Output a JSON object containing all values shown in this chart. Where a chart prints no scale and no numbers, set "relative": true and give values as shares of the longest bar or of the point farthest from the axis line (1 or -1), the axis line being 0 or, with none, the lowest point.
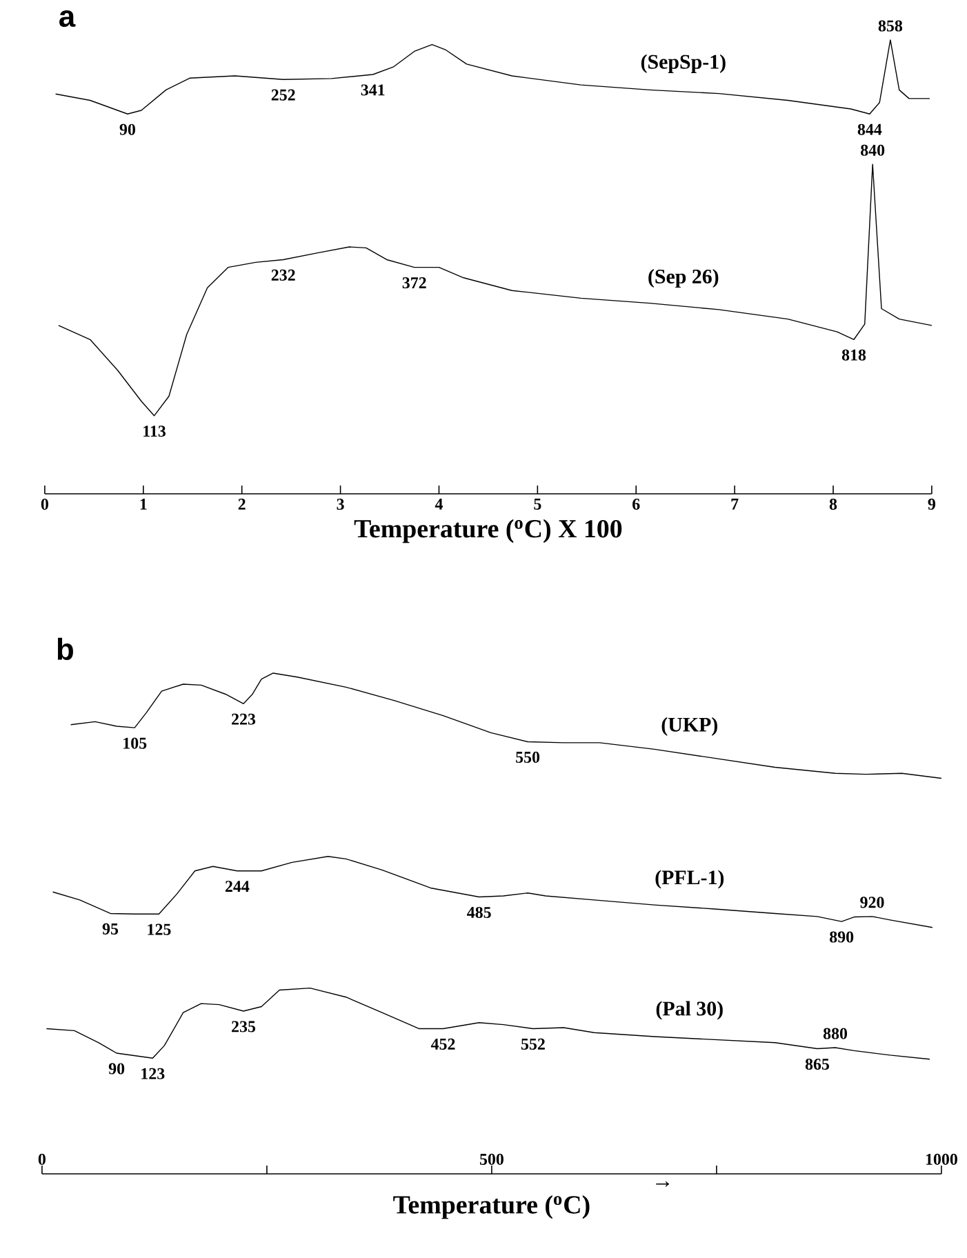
{
  "chart_data": [
    {
      "type": "line",
      "title": "a",
      "xlabel": "Temperature ($^{o}$C) X 100",
      "relative": true,
      "marker": "none",
      "xlim": [
        0,
        9
      ],
      "xticks": [
        0,
        1,
        2,
        3,
        4,
        5,
        6,
        7,
        8,
        9
      ],
      "series": [
        {
          "name": "(SepSp-1)",
          "color": "#000000",
          "x": [
            0.11,
            0.46,
            0.84,
            0.98,
            1.23,
            1.47,
            1.93,
            2.42,
            2.91,
            3.33,
            3.54,
            3.75,
            3.93,
            4.07,
            4.28,
            4.74,
            5.44,
            6.14,
            6.84,
            7.54,
            8.18,
            8.37,
            8.47,
            8.58,
            8.67,
            8.77,
            8.98
          ],
          "values": [
            0.881,
            0.867,
            0.837,
            0.845,
            0.89,
            0.916,
            0.921,
            0.913,
            0.915,
            0.924,
            0.941,
            0.975,
            0.99,
            0.978,
            0.947,
            0.921,
            0.901,
            0.89,
            0.882,
            0.867,
            0.848,
            0.837,
            0.862,
            1.0,
            0.89,
            0.871,
            0.871
          ]
        },
        {
          "name": "(Sep 26)",
          "color": "#000000",
          "x": [
            0.14,
            0.46,
            0.74,
            0.98,
            1.11,
            1.26,
            1.44,
            1.65,
            1.86,
            2.14,
            2.42,
            2.77,
            3.09,
            3.26,
            3.47,
            3.75,
            4.0,
            4.25,
            4.74,
            5.44,
            6.14,
            6.84,
            7.54,
            8.04,
            8.21,
            8.32,
            8.4,
            8.49,
            8.67,
            9.0
          ],
          "values": [
            0.371,
            0.34,
            0.272,
            0.204,
            0.172,
            0.215,
            0.351,
            0.454,
            0.499,
            0.51,
            0.516,
            0.531,
            0.544,
            0.542,
            0.516,
            0.499,
            0.499,
            0.476,
            0.448,
            0.431,
            0.42,
            0.406,
            0.385,
            0.357,
            0.34,
            0.374,
            0.726,
            0.408,
            0.385,
            0.371
          ]
        }
      ],
      "annotations": [
        {
          "text": "90",
          "x": 0.84,
          "y": 0.837
        },
        {
          "text": "252",
          "x": 2.42,
          "y": 0.913
        },
        {
          "text": "341",
          "x": 3.33,
          "y": 0.924
        },
        {
          "text": "858",
          "x": 8.58,
          "y": 1.0
        },
        {
          "text": "844",
          "x": 8.37,
          "y": 0.837
        },
        {
          "text": "840",
          "x": 8.4,
          "y": 0.726
        },
        {
          "text": "232",
          "x": 2.42,
          "y": 0.516
        },
        {
          "text": "372",
          "x": 3.75,
          "y": 0.499
        },
        {
          "text": "113",
          "x": 1.11,
          "y": 0.172
        },
        {
          "text": "818",
          "x": 8.21,
          "y": 0.34
        }
      ]
    },
    {
      "type": "line",
      "title": "b",
      "xlabel": "Temperature ($^{o}$C)",
      "relative": true,
      "marker": "none",
      "xlim": [
        0,
        1000
      ],
      "xticks": [
        0,
        {
          "value": 250,
          "label": null
        },
        500,
        {
          "value": 750,
          "label": null
        },
        1000
      ],
      "series": [
        {
          "name": "(UKP)",
          "color": "#000000",
          "x": [
            32,
            59,
            83,
            103,
            116,
            133,
            157,
            177,
            204,
            224,
            234,
            244,
            257,
            284,
            338,
            392,
            446,
            499,
            540,
            580,
            620,
            681,
            748,
            815,
            882,
            916,
            956,
            1000
          ],
          "values": [
            0.897,
            0.903,
            0.894,
            0.891,
            0.921,
            0.964,
            0.978,
            0.976,
            0.958,
            0.939,
            0.958,
            0.988,
            1.0,
            0.992,
            0.972,
            0.945,
            0.915,
            0.881,
            0.863,
            0.861,
            0.861,
            0.848,
            0.83,
            0.812,
            0.8,
            0.798,
            0.8,
            0.79
          ]
        },
        {
          "name": "(PFL-1)",
          "color": "#000000",
          "x": [
            12,
            42,
            76,
            103,
            130,
            150,
            170,
            190,
            217,
            244,
            278,
            318,
            338,
            378,
            432,
            486,
            513,
            540,
            560,
            614,
            681,
            748,
            815,
            862,
            889,
            903,
            923,
            943,
            990
          ],
          "values": [
            0.563,
            0.547,
            0.52,
            0.519,
            0.519,
            0.559,
            0.605,
            0.614,
            0.605,
            0.605,
            0.622,
            0.634,
            0.629,
            0.607,
            0.571,
            0.553,
            0.555,
            0.561,
            0.555,
            0.547,
            0.537,
            0.529,
            0.52,
            0.514,
            0.504,
            0.513,
            0.514,
            0.507,
            0.492
          ]
        },
        {
          "name": "(Pal 30)",
          "color": "#000000",
          "x": [
            5,
            36,
            63,
            83,
            123,
            136,
            157,
            177,
            197,
            224,
            244,
            264,
            298,
            338,
            378,
            419,
            446,
            486,
            513,
            546,
            580,
            614,
            681,
            748,
            815,
            862,
            882,
            903,
            943,
            987
          ],
          "values": [
            0.29,
            0.286,
            0.262,
            0.241,
            0.231,
            0.256,
            0.322,
            0.34,
            0.338,
            0.325,
            0.334,
            0.367,
            0.371,
            0.353,
            0.322,
            0.29,
            0.29,
            0.302,
            0.298,
            0.29,
            0.292,
            0.282,
            0.274,
            0.268,
            0.262,
            0.25,
            0.252,
            0.246,
            0.237,
            0.229
          ]
        }
      ],
      "annotations": [
        {
          "text": "105",
          "x": 103,
          "y": 0.891
        },
        {
          "text": "223",
          "x": 224,
          "y": 0.939
        },
        {
          "text": "550",
          "x": 540,
          "y": 0.863
        },
        {
          "text": "95",
          "x": 76,
          "y": 0.52
        },
        {
          "text": "125",
          "x": 130,
          "y": 0.519
        },
        {
          "text": "244",
          "x": 217,
          "y": 0.605
        },
        {
          "text": "485",
          "x": 486,
          "y": 0.553
        },
        {
          "text": "920",
          "x": 923,
          "y": 0.514
        },
        {
          "text": "890",
          "x": 889,
          "y": 0.504
        },
        {
          "text": "235",
          "x": 224,
          "y": 0.325
        },
        {
          "text": "90",
          "x": 83,
          "y": 0.241
        },
        {
          "text": "123",
          "x": 123,
          "y": 0.231
        },
        {
          "text": "452",
          "x": 446,
          "y": 0.29
        },
        {
          "text": "552",
          "x": 546,
          "y": 0.29
        },
        {
          "text": "880",
          "x": 882,
          "y": 0.252
        },
        {
          "text": "865",
          "x": 862,
          "y": 0.25
        },
        "→"
      ]
    }
  ]
}
